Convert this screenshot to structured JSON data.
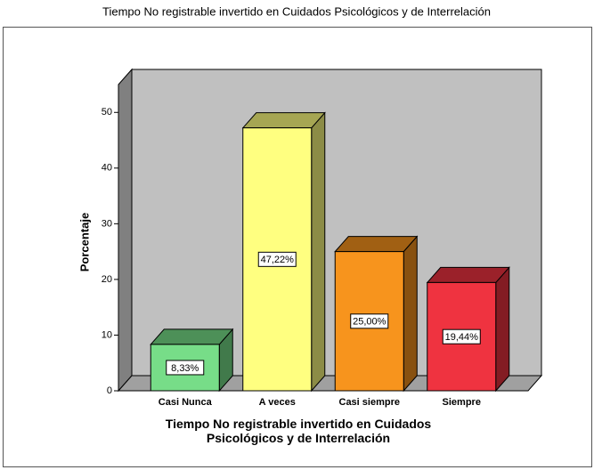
{
  "chart_data": {
    "type": "bar3d",
    "title": "Tiempo No registrable invertido en Cuidados Psicológicos y de Interrelación",
    "xlabel": "Tiempo No registrable invertido en Cuidados Psicológicos y de Interrelación",
    "ylabel": "Porcentaje",
    "categories": [
      "Casi Nunca",
      "A veces",
      "Casi siempre",
      "Siempre"
    ],
    "values": [
      8.33,
      47.22,
      25.0,
      19.44
    ],
    "value_labels": [
      "8,33%",
      "47,22%",
      "25,00%",
      "19,44%"
    ],
    "colors": [
      "#77dd88",
      "#ffff80",
      "#f7941d",
      "#ef3340"
    ],
    "ylim": [
      0,
      55
    ],
    "yticks": [
      0,
      10,
      20,
      30,
      40,
      50
    ],
    "grid": false
  }
}
